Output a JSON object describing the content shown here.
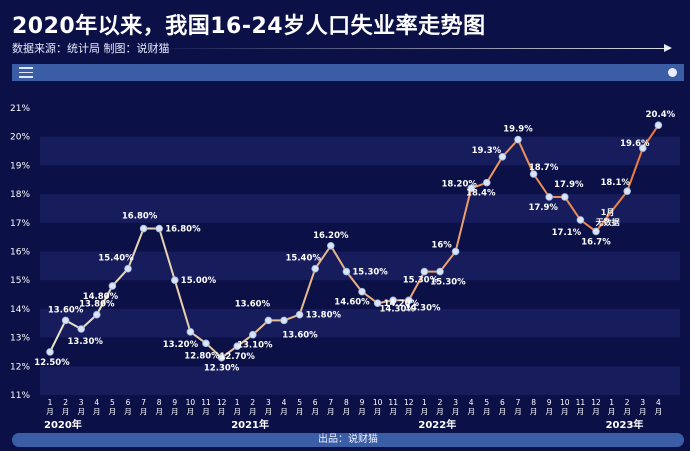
{
  "header": {
    "title": "2020年以来，我国16-24岁人口失业率走势图",
    "subtitle": "数据来源：统计局   制图：说财猫"
  },
  "footer": {
    "text": "出品：说财猫"
  },
  "colors": {
    "background": "#0b1046",
    "band_odd": "#161c5c",
    "line_start": "#e7e6c8",
    "line_end": "#f07a3e",
    "marker": "#d9e4f7",
    "accent_bar": "#3a5da6"
  },
  "chart_data": {
    "type": "line",
    "title": "2020年以来，我国16-24岁人口失业率走势图",
    "ylabel": "",
    "ylim": [
      11,
      21
    ],
    "yticks": [
      "11%",
      "12%",
      "13%",
      "14%",
      "15%",
      "16%",
      "17%",
      "18%",
      "19%",
      "20%",
      "21%"
    ],
    "grid": "horizontal bands",
    "categories": [
      "2020-01",
      "2020-02",
      "2020-03",
      "2020-04",
      "2020-05",
      "2020-06",
      "2020-07",
      "2020-08",
      "2020-09",
      "2020-10",
      "2020-11",
      "2020-12",
      "2021-01",
      "2021-02",
      "2021-03",
      "2021-04",
      "2021-05",
      "2021-06",
      "2021-07",
      "2021-08",
      "2021-09",
      "2021-10",
      "2021-11",
      "2021-12",
      "2022-01",
      "2022-02",
      "2022-03",
      "2022-04",
      "2022-05",
      "2022-06",
      "2022-07",
      "2022-08",
      "2022-09",
      "2022-10",
      "2022-11",
      "2022-12",
      "2023-01",
      "2023-02",
      "2023-03",
      "2023-04"
    ],
    "xtick_labels": [
      "1\n月",
      "2\n月",
      "3\n月",
      "4\n月",
      "5\n月",
      "6\n月",
      "7\n月",
      "8\n月",
      "9\n月",
      "10\n月",
      "11\n月",
      "12\n月",
      "1\n月",
      "2\n月",
      "3\n月",
      "4\n月",
      "5\n月",
      "6\n月",
      "7\n月",
      "8\n月",
      "9\n月",
      "10\n月",
      "11\n月",
      "12\n月",
      "1\n月",
      "2\n月",
      "3\n月",
      "4\n月",
      "5\n月",
      "6\n月",
      "7\n月",
      "8\n月",
      "9\n月",
      "10\n月",
      "11\n月",
      "12\n月",
      "1\n月",
      "2\n月",
      "3\n月",
      "4\n月"
    ],
    "year_labels": [
      {
        "text": "2020年",
        "index": 0
      },
      {
        "text": "2021年",
        "index": 12
      },
      {
        "text": "2022年",
        "index": 24
      },
      {
        "text": "2023年",
        "index": 36
      }
    ],
    "values": [
      12.5,
      13.6,
      13.3,
      13.8,
      14.8,
      15.4,
      16.8,
      16.8,
      15.0,
      13.2,
      12.8,
      12.3,
      12.7,
      13.1,
      13.6,
      13.6,
      13.8,
      15.4,
      16.2,
      15.3,
      14.6,
      14.2,
      14.3,
      14.3,
      15.3,
      15.3,
      16.0,
      18.2,
      18.4,
      19.3,
      19.9,
      18.7,
      17.9,
      17.9,
      17.1,
      16.7,
      null,
      18.1,
      19.6,
      20.4
    ],
    "data_labels": [
      {
        "i": 0,
        "text": "12.50%"
      },
      {
        "i": 1,
        "text": "13.60%"
      },
      {
        "i": 2,
        "text": "13.30%"
      },
      {
        "i": 3,
        "text": "13.80%"
      },
      {
        "i": 4,
        "text": "14.80%"
      },
      {
        "i": 5,
        "text": "15.40%"
      },
      {
        "i": 6,
        "text": "16.80%"
      },
      {
        "i": 7,
        "text": "16.80%"
      },
      {
        "i": 8,
        "text": "15.00%"
      },
      {
        "i": 9,
        "text": "13.20%"
      },
      {
        "i": 10,
        "text": "12.80%"
      },
      {
        "i": 11,
        "text": "12.30%"
      },
      {
        "i": 12,
        "text": "12.70%"
      },
      {
        "i": 13,
        "text": "13.10%"
      },
      {
        "i": 14,
        "text": "13.60%"
      },
      {
        "i": 15,
        "text": "13.60%"
      },
      {
        "i": 16,
        "text": "13.80%"
      },
      {
        "i": 17,
        "text": "15.40%"
      },
      {
        "i": 18,
        "text": "16.20%"
      },
      {
        "i": 19,
        "text": "15.30%"
      },
      {
        "i": 20,
        "text": "14.60%"
      },
      {
        "i": 21,
        "text": "14.20%"
      },
      {
        "i": 22,
        "text": "14.30%"
      },
      {
        "i": 23,
        "text": "14.30%"
      },
      {
        "i": 24,
        "text": "15.30%"
      },
      {
        "i": 25,
        "text": "15.30%"
      },
      {
        "i": 26,
        "text": "16%"
      },
      {
        "i": 27,
        "text": "18.20%"
      },
      {
        "i": 28,
        "text": "18.4%"
      },
      {
        "i": 29,
        "text": "19.3%"
      },
      {
        "i": 30,
        "text": "19.9%"
      },
      {
        "i": 31,
        "text": "18.7%"
      },
      {
        "i": 32,
        "text": "17.9%"
      },
      {
        "i": 33,
        "text": "17.9%"
      },
      {
        "i": 34,
        "text": "17.1%"
      },
      {
        "i": 35,
        "text": "16.7%"
      },
      {
        "i": 37,
        "text": "18.1%"
      },
      {
        "i": 38,
        "text": "19.6%"
      },
      {
        "i": 39,
        "text": "20.4%"
      }
    ],
    "annotations": [
      {
        "i": 36,
        "text": "1月\n无数据"
      }
    ]
  }
}
